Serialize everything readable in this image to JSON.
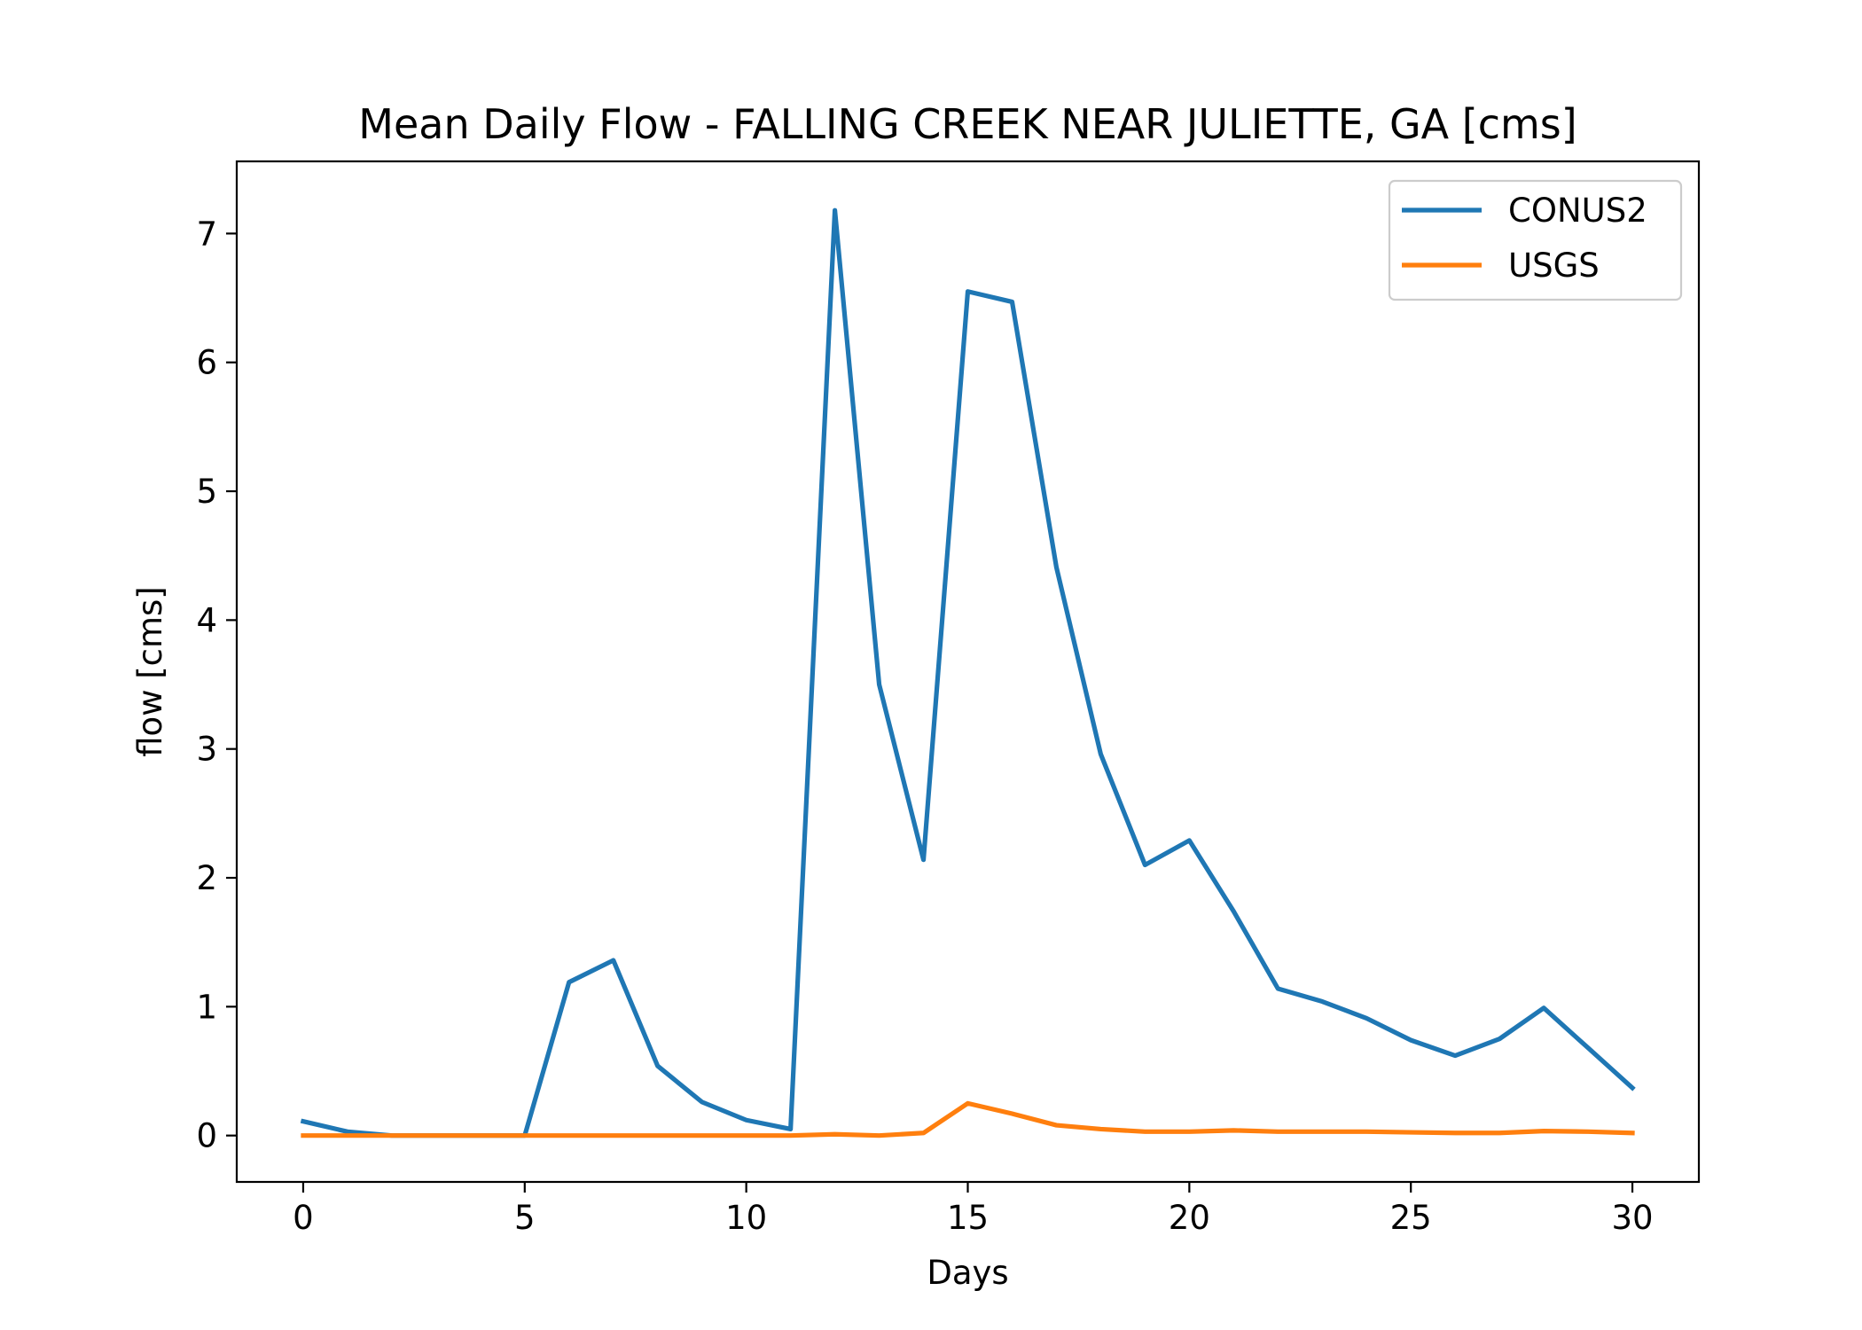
{
  "chart_data": {
    "type": "line",
    "title": "Mean Daily Flow - FALLING CREEK NEAR JULIETTE, GA [cms]",
    "xlabel": "Days",
    "ylabel": "flow [cms]",
    "xlim": [
      -1.5,
      31.5
    ],
    "ylim": [
      -0.36,
      7.56
    ],
    "xticks": [
      0,
      5,
      10,
      15,
      20,
      25,
      30
    ],
    "yticks": [
      0,
      1,
      2,
      3,
      4,
      5,
      6,
      7
    ],
    "grid": false,
    "legend_position": "top-right",
    "x": [
      0,
      1,
      2,
      3,
      4,
      5,
      6,
      7,
      8,
      9,
      10,
      11,
      12,
      13,
      14,
      15,
      16,
      17,
      18,
      19,
      20,
      21,
      22,
      23,
      24,
      25,
      26,
      27,
      28,
      29,
      30
    ],
    "series": [
      {
        "name": "CONUS2",
        "color": "#1f77b4",
        "values": [
          0.11,
          0.03,
          0.0,
          0.0,
          0.0,
          0.0,
          1.19,
          1.36,
          0.54,
          0.26,
          0.12,
          0.05,
          7.18,
          3.5,
          2.14,
          6.55,
          6.47,
          4.41,
          2.96,
          2.1,
          2.29,
          1.74,
          1.14,
          1.04,
          0.91,
          0.74,
          0.62,
          0.75,
          0.99,
          0.68,
          0.37
        ]
      },
      {
        "name": "USGS",
        "color": "#ff7f0e",
        "values": [
          0.0,
          0.0,
          0.0,
          0.0,
          0.0,
          0.0,
          0.0,
          0.0,
          0.0,
          0.0,
          0.0,
          0.0,
          0.01,
          0.0,
          0.02,
          0.25,
          0.17,
          0.08,
          0.05,
          0.03,
          0.03,
          0.04,
          0.03,
          0.03,
          0.03,
          0.025,
          0.02,
          0.02,
          0.035,
          0.03,
          0.02
        ]
      }
    ]
  }
}
